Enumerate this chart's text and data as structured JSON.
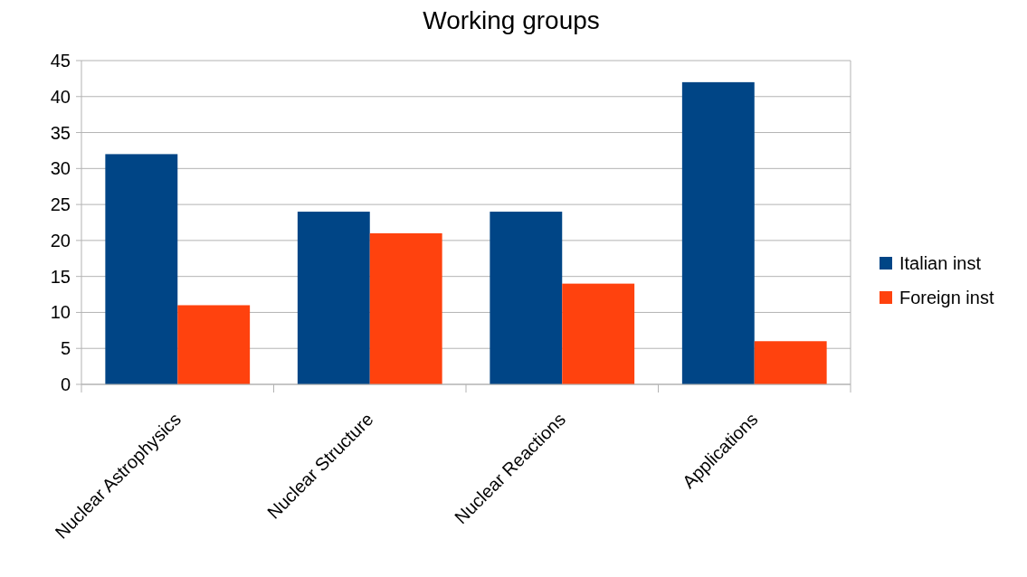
{
  "chart_data": {
    "type": "bar",
    "title": "Working groups",
    "categories": [
      "Nuclear Astrophysics",
      "Nuclear Structure",
      "Nuclear Reactions",
      "Applications"
    ],
    "series": [
      {
        "name": "Italian inst",
        "color": "#004586",
        "values": [
          32,
          24,
          24,
          42
        ]
      },
      {
        "name": "Foreign inst",
        "color": "#ff420e",
        "values": [
          11,
          21,
          14,
          6
        ]
      }
    ],
    "ylim": [
      0,
      45
    ],
    "yticks": [
      0,
      5,
      10,
      15,
      20,
      25,
      30,
      35,
      40,
      45
    ],
    "grid": "y",
    "legend": "right"
  }
}
